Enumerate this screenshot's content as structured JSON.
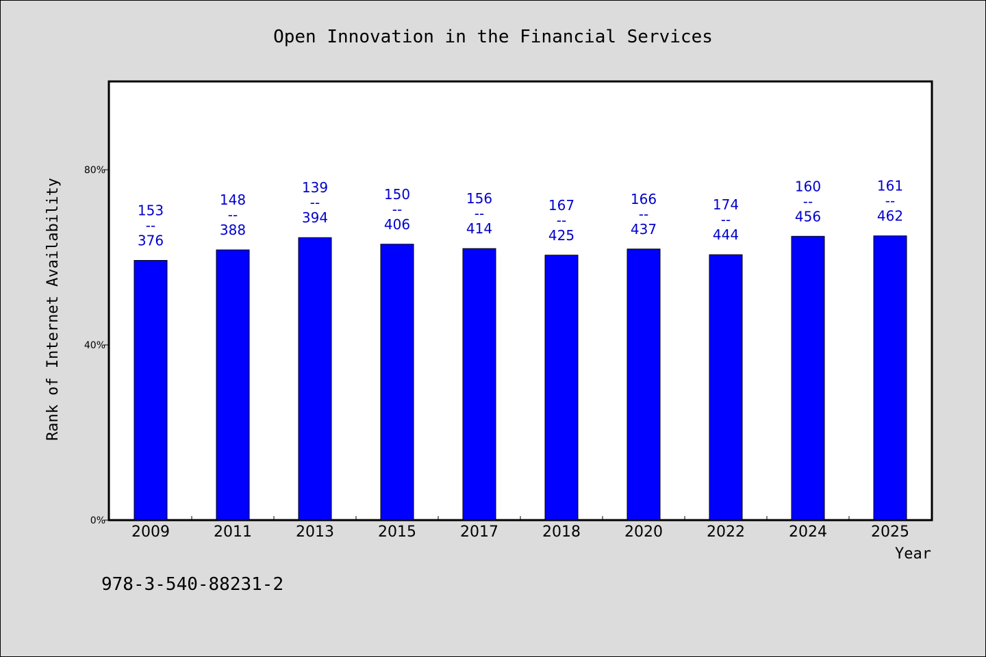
{
  "chart_data": {
    "type": "bar",
    "title": "Open Innovation in the Financial Services",
    "xlabel": "Year",
    "ylabel": "Rank of Internet Availability",
    "ylim": [
      0,
      100
    ],
    "yticks": [
      0,
      40,
      80
    ],
    "ytick_labels": [
      "0%",
      "40%",
      "80%"
    ],
    "categories": [
      "2009",
      "2011",
      "2013",
      "2015",
      "2017",
      "2018",
      "2020",
      "2022",
      "2024",
      "2025"
    ],
    "values": [
      59.3,
      61.7,
      64.5,
      63.0,
      62.0,
      60.5,
      61.9,
      60.6,
      64.8,
      64.9
    ],
    "labels_top": [
      "153",
      "148",
      "139",
      "150",
      "156",
      "167",
      "166",
      "174",
      "160",
      "161"
    ],
    "labels_sep": "--",
    "labels_bottom": [
      "376",
      "388",
      "394",
      "406",
      "414",
      "425",
      "437",
      "444",
      "456",
      "462"
    ],
    "bar_color": "#0000ff",
    "label_color": "#0000cc",
    "grid": false,
    "legend": "none"
  },
  "footnote": "978-3-540-88231-2"
}
